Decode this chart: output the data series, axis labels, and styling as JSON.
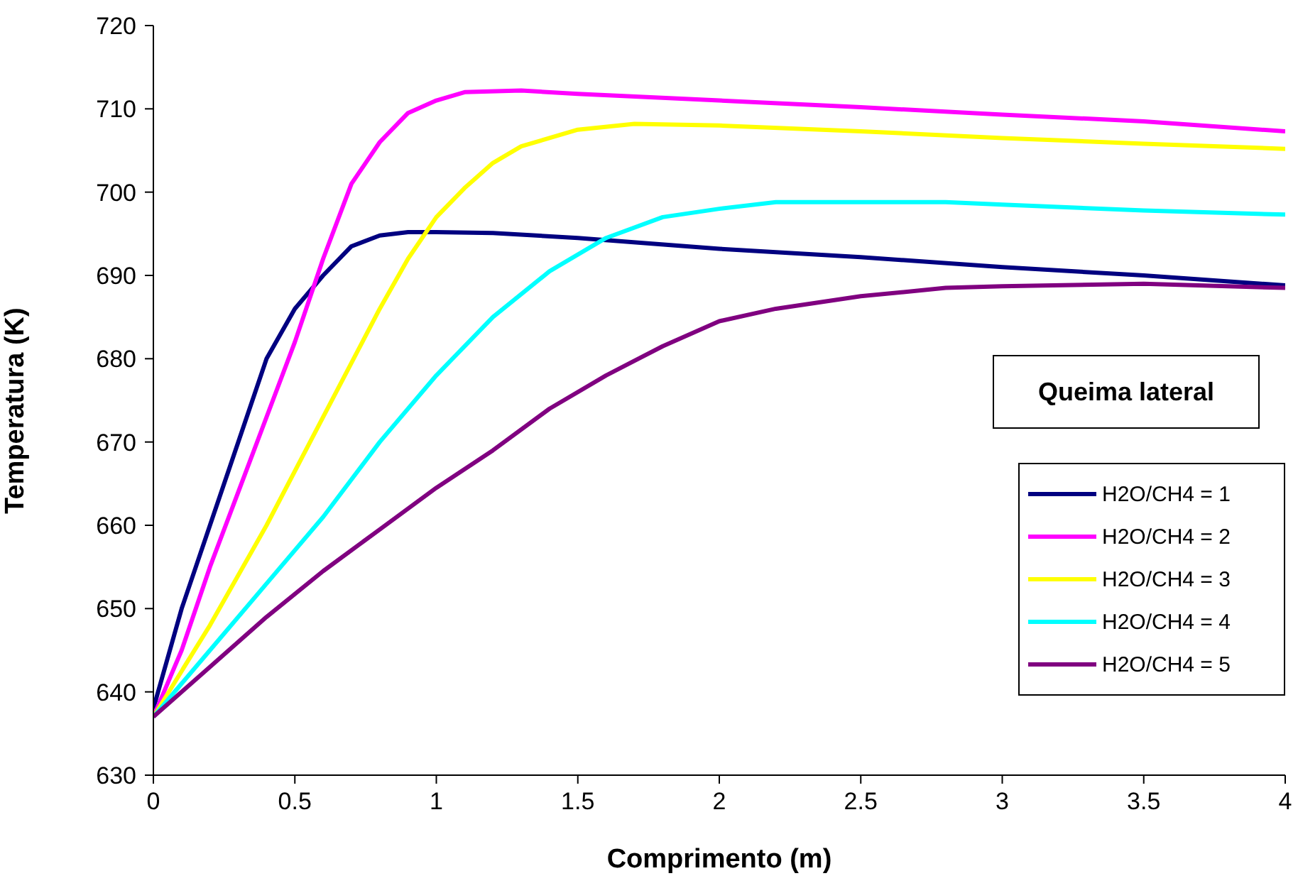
{
  "chart_data": {
    "type": "line",
    "xlabel": "Comprimento (m)",
    "ylabel": "Temperatura (K)",
    "annotations": [
      "Queima lateral"
    ],
    "xlim": [
      0,
      4
    ],
    "xticks": [
      0,
      0.5,
      1,
      1.5,
      2,
      2.5,
      3,
      3.5,
      4
    ],
    "ylim": [
      630,
      720
    ],
    "yticks": [
      630,
      640,
      650,
      660,
      670,
      680,
      690,
      700,
      710,
      720
    ],
    "grid": false,
    "legend": "bottom right",
    "marker": "none",
    "line_style": "solid",
    "series": [
      {
        "name": "H2O/CH4 = 1",
        "color": "#000080",
        "x": [
          0,
          0.1,
          0.2,
          0.3,
          0.4,
          0.5,
          0.6,
          0.7,
          0.8,
          0.9,
          1.0,
          1.2,
          1.5,
          2.0,
          2.5,
          3.0,
          3.5,
          4
        ],
        "values": [
          638,
          650,
          660,
          670,
          680,
          686,
          690,
          693.5,
          694.8,
          695.2,
          695.2,
          695.1,
          694.5,
          693.2,
          692.2,
          691,
          690,
          688.8
        ]
      },
      {
        "name": "H2O/CH4 = 2",
        "color": "#ff00ff",
        "x": [
          0,
          0.1,
          0.2,
          0.3,
          0.4,
          0.5,
          0.6,
          0.7,
          0.8,
          0.9,
          1.0,
          1.1,
          1.3,
          1.5,
          2,
          2.5,
          3,
          3.5,
          4
        ],
        "values": [
          637,
          645,
          655,
          664,
          673,
          682,
          692,
          701,
          706,
          709.5,
          711,
          712,
          712.2,
          711.8,
          711,
          710.2,
          709.3,
          708.5,
          707.3
        ]
      },
      {
        "name": "H2O/CH4 = 3",
        "color": "#ffff00",
        "x": [
          0,
          0.2,
          0.4,
          0.6,
          0.8,
          0.9,
          1.0,
          1.1,
          1.2,
          1.3,
          1.4,
          1.5,
          1.7,
          2,
          2.5,
          3,
          3.5,
          4
        ],
        "values": [
          637,
          648,
          660,
          673,
          686,
          692,
          697,
          700.5,
          703.5,
          705.5,
          706.5,
          707.5,
          708.2,
          708,
          707.3,
          706.5,
          705.8,
          705.2
        ]
      },
      {
        "name": "H2O/CH4 = 4",
        "color": "#00ffff",
        "x": [
          0,
          0.2,
          0.4,
          0.6,
          0.8,
          1.0,
          1.2,
          1.4,
          1.6,
          1.8,
          2.0,
          2.2,
          2.8,
          3,
          3.5,
          4
        ],
        "values": [
          637,
          645,
          653,
          661,
          670,
          678,
          685,
          690.5,
          694.5,
          697,
          698,
          698.8,
          698.8,
          698.5,
          697.8,
          697.3
        ]
      },
      {
        "name": "H2O/CH4 = 5",
        "color": "#800080",
        "x": [
          0,
          0.2,
          0.4,
          0.6,
          0.8,
          1.0,
          1.2,
          1.4,
          1.6,
          1.8,
          2.0,
          2.2,
          2.5,
          2.8,
          3.0,
          3.5,
          4
        ],
        "values": [
          637,
          643,
          649,
          654.5,
          659.5,
          664.5,
          669,
          674,
          678,
          681.5,
          684.5,
          686,
          687.5,
          688.5,
          688.7,
          689,
          688.5
        ]
      }
    ]
  }
}
